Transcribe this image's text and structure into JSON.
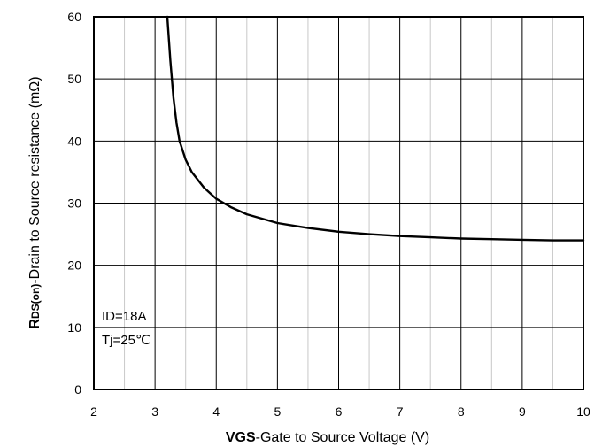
{
  "chart_data": {
    "type": "line",
    "xlabel_bold": "VGS",
    "xlabel_rest": "-Gate to Source Voltage (V)",
    "ylabel_bold": "R",
    "ylabel_sub": "DS(on)",
    "ylabel_rest": "-Drain to Source resistance (mΩ)",
    "xlim": [
      2,
      10
    ],
    "ylim": [
      0,
      60
    ],
    "x_ticks": [
      "2",
      "3",
      "4",
      "5",
      "6",
      "7",
      "8",
      "9",
      "10"
    ],
    "y_ticks": [
      "0",
      "10",
      "20",
      "30",
      "40",
      "50",
      "60"
    ],
    "grid": true,
    "annotations": [
      "ID=18A",
      "Tj=25℃"
    ],
    "series": [
      {
        "color": "#000000",
        "x": [
          3.2,
          3.25,
          3.3,
          3.35,
          3.4,
          3.5,
          3.6,
          3.8,
          4.0,
          4.25,
          4.5,
          5.0,
          5.5,
          6.0,
          6.5,
          7.0,
          7.5,
          8.0,
          8.5,
          9.0,
          9.5,
          10.0
        ],
        "y": [
          60,
          53,
          47,
          43,
          40,
          37,
          35,
          32.5,
          30.7,
          29.3,
          28.2,
          26.8,
          26.0,
          25.4,
          25.0,
          24.7,
          24.5,
          24.3,
          24.2,
          24.1,
          24.0,
          24.0
        ]
      }
    ]
  }
}
